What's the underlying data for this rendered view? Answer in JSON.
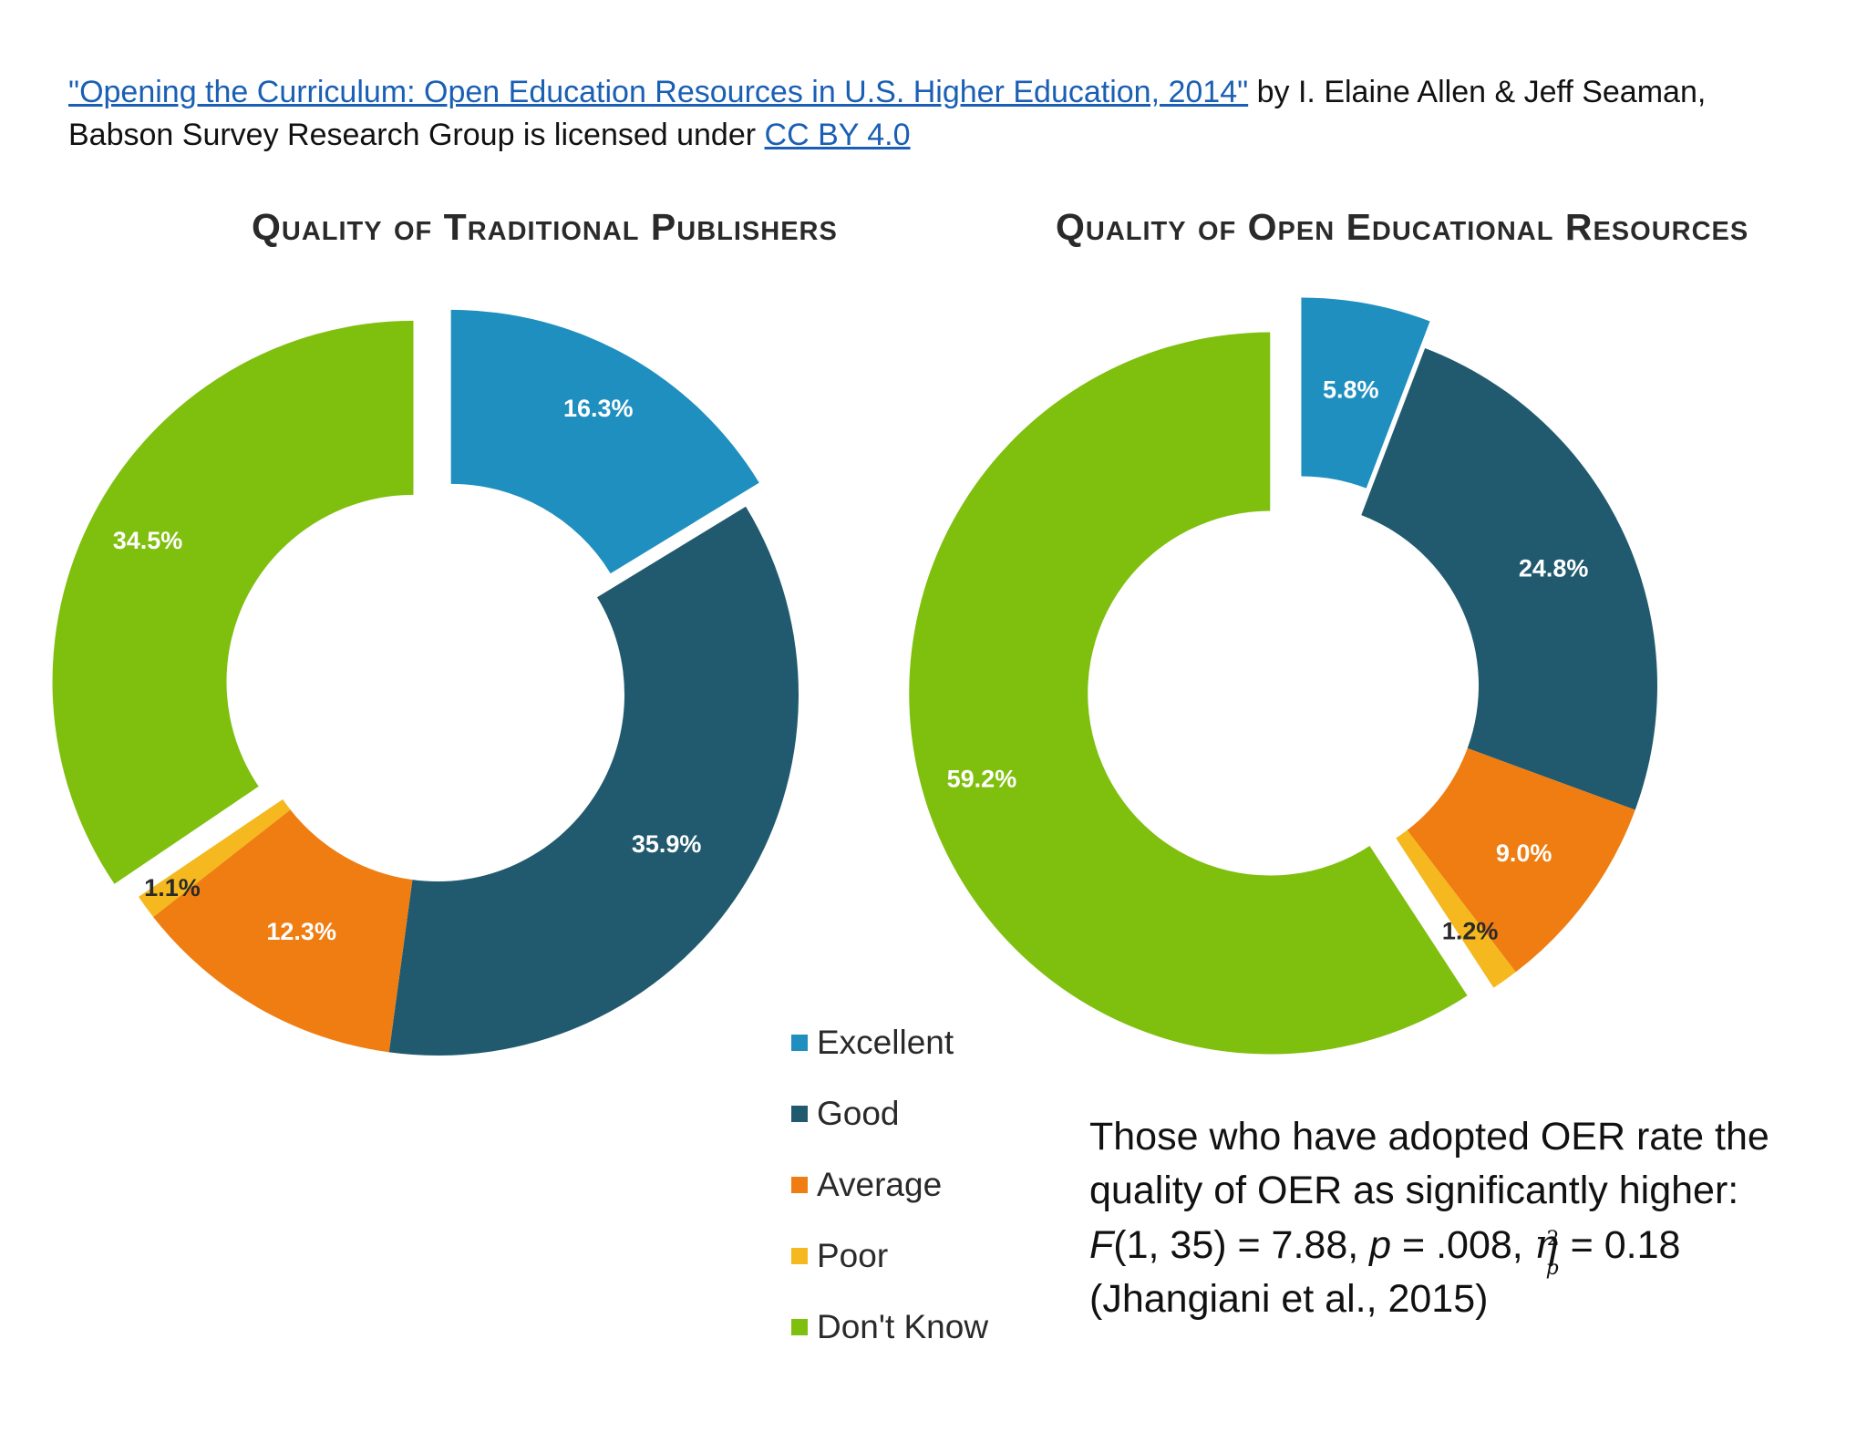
{
  "attribution": {
    "work_title": "\"Opening the Curriculum: Open Education Resources in U.S. Higher Education, 2014\"",
    "authors": " by I. Elaine Allen & Jeff Seaman,",
    "line2_prefix": "Babson Survey Research Group is licensed under ",
    "license": "CC BY 4.0"
  },
  "colors": {
    "Excellent": "#1f8fbf",
    "Good": "#215a6e",
    "Average": "#ef7d12",
    "Poor": "#f5b81e",
    "Don't Know": "#7fbf0e"
  },
  "legend": {
    "items": [
      "Excellent",
      "Good",
      "Average",
      "Poor",
      "Don't Know"
    ]
  },
  "chart_data": [
    {
      "type": "pie",
      "title": "Quality of Traditional Publishers",
      "categories": [
        "Excellent",
        "Good",
        "Average",
        "Poor",
        "Don't Know"
      ],
      "values": [
        16.3,
        35.9,
        12.3,
        1.1,
        34.5
      ],
      "labels": [
        "16.3%",
        "35.9%",
        "12.3%",
        "1.1%",
        "34.5%"
      ],
      "exploded": [
        "Excellent",
        "Don't Know"
      ]
    },
    {
      "type": "pie",
      "title": "Quality of Open Educational Resources",
      "categories": [
        "Excellent",
        "Good",
        "Average",
        "Poor",
        "Don't Know"
      ],
      "values": [
        5.8,
        24.8,
        9.0,
        1.2,
        59.2
      ],
      "labels": [
        "5.8%",
        "24.8%",
        "9.0%",
        "1.2%",
        "59.2%"
      ],
      "exploded": [
        "Excellent",
        "Don't Know"
      ]
    }
  ],
  "note": {
    "line1": "Those who have adopted OER rate the",
    "line2": "quality of OER as significantly higher:",
    "stat_F": "F",
    "stat_F_rest": "(1, 35) = 7.88, ",
    "stat_p": "p",
    "stat_p_rest": " = .008, ",
    "eta": "η",
    "eta_sup": "2",
    "eta_sub": "p",
    "eta_rest": "= 0.18",
    "line4": "(Jhangiani et al., 2015)"
  }
}
